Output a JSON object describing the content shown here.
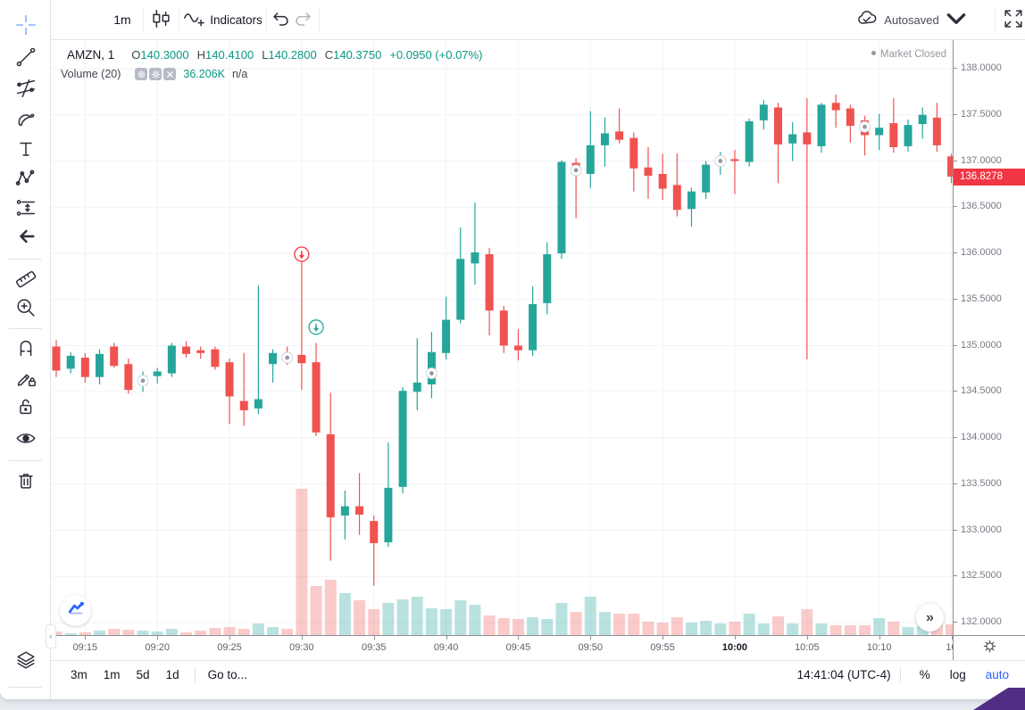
{
  "colors": {
    "up": "#26a69a",
    "down": "#ef5350",
    "vol_up": "rgba(38,166,154,0.32)",
    "vol_down": "rgba(239,83,80,0.30)",
    "grid": "#f0f3fa",
    "border": "#e0e3eb",
    "accent_blue": "#2962ff",
    "badge_red": "#f23645",
    "text_teal": "#089981",
    "text_gray": "#787b86",
    "marker_gray": "#9598a1",
    "purple_corner": "#512d86"
  },
  "sidebar": {
    "tools": [
      {
        "name": "crosshair",
        "active": true
      },
      {
        "name": "trend-line",
        "active": false
      },
      {
        "name": "gann-fib",
        "active": false
      },
      {
        "name": "brush",
        "active": false
      },
      {
        "name": "text",
        "active": false
      },
      {
        "name": "xabcd-pattern",
        "active": false
      },
      {
        "name": "forecast",
        "active": false
      },
      {
        "name": "arrow-mark",
        "active": false
      },
      {
        "name": "measure",
        "active": false
      },
      {
        "name": "zoom-in",
        "active": false
      },
      {
        "name": "magnet",
        "active": false
      },
      {
        "name": "drawing-mode",
        "active": false
      },
      {
        "name": "lock-all",
        "active": false
      },
      {
        "name": "hide-all",
        "active": false
      },
      {
        "name": "remove-all",
        "active": false
      },
      {
        "name": "object-tree",
        "active": false
      }
    ]
  },
  "toolbar": {
    "interval": "1m",
    "indicators_label": "Indicators",
    "autosaved_label": "Autosaved"
  },
  "legend": {
    "symbol": "AMZN, 1",
    "ohlc": [
      {
        "label": "O",
        "value": "140.3000"
      },
      {
        "label": "H",
        "value": "140.4100"
      },
      {
        "label": "L",
        "value": "140.2800"
      },
      {
        "label": "C",
        "value": "140.3750"
      }
    ],
    "change": "+0.0950 (+0.07%)",
    "volume_label": "Volume (20)",
    "volume_value": "36.206K",
    "volume_na": "n/a"
  },
  "status": {
    "market_closed": "Market Closed"
  },
  "price_axis": {
    "last_price": "136.8278",
    "ticks": [
      {
        "label": "138.0000",
        "price": 138.0
      },
      {
        "label": "137.5000",
        "price": 137.5
      },
      {
        "label": "137.0000",
        "price": 137.0
      },
      {
        "label": "136.5000",
        "price": 136.5
      },
      {
        "label": "136.0000",
        "price": 136.0
      },
      {
        "label": "135.5000",
        "price": 135.5
      },
      {
        "label": "135.0000",
        "price": 135.0
      },
      {
        "label": "134.5000",
        "price": 134.5
      },
      {
        "label": "134.0000",
        "price": 134.0
      },
      {
        "label": "133.5000",
        "price": 133.5
      },
      {
        "label": "133.0000",
        "price": 133.0
      },
      {
        "label": "132.5000",
        "price": 132.5
      },
      {
        "label": "132.0000",
        "price": 132.0
      }
    ]
  },
  "time_axis": {
    "labels": [
      {
        "text": "09:15",
        "index": 2,
        "bold": false
      },
      {
        "text": "09:20",
        "index": 7,
        "bold": false
      },
      {
        "text": "09:25",
        "index": 12,
        "bold": false
      },
      {
        "text": "09:30",
        "index": 17,
        "bold": false
      },
      {
        "text": "09:35",
        "index": 22,
        "bold": false
      },
      {
        "text": "09:40",
        "index": 27,
        "bold": false
      },
      {
        "text": "09:45",
        "index": 32,
        "bold": false
      },
      {
        "text": "09:50",
        "index": 37,
        "bold": false
      },
      {
        "text": "09:55",
        "index": 42,
        "bold": false
      },
      {
        "text": "10:00",
        "index": 47,
        "bold": true
      },
      {
        "text": "10:05",
        "index": 52,
        "bold": false
      },
      {
        "text": "10:10",
        "index": 57,
        "bold": false
      },
      {
        "text": "10",
        "index": 62,
        "bold": false
      }
    ]
  },
  "bottom_bar": {
    "ranges": [
      "3m",
      "1m",
      "5d",
      "1d"
    ],
    "goto_label": "Go to...",
    "clock": "14:41:04 (UTC-4)",
    "percent_label": "%",
    "log_label": "log",
    "auto_label": "auto"
  },
  "chart_data": {
    "type": "candlestick",
    "symbol": "AMZN",
    "interval": "1m",
    "price_range_visible": [
      132.0,
      138.0
    ],
    "volume_note": "volume in relative pixel units, max bar = 09:30",
    "candles": [
      [
        "09:13",
        134.99,
        135.06,
        134.66,
        134.73,
        4
      ],
      [
        "09:14",
        134.75,
        134.93,
        134.7,
        134.89,
        2
      ],
      [
        "09:15",
        134.87,
        134.92,
        134.6,
        134.66,
        3
      ],
      [
        "09:16",
        134.66,
        134.96,
        134.58,
        134.91,
        5
      ],
      [
        "09:17",
        134.99,
        135.03,
        134.76,
        134.78,
        7
      ],
      [
        "09:18",
        134.8,
        134.86,
        134.48,
        134.52,
        6
      ],
      [
        "09:19",
        134.57,
        134.72,
        134.5,
        134.67,
        5
      ],
      [
        "09:20",
        134.67,
        134.76,
        134.59,
        134.72,
        4
      ],
      [
        "09:21",
        134.7,
        135.03,
        134.66,
        135.0,
        7
      ],
      [
        "09:22",
        134.99,
        135.05,
        134.87,
        134.91,
        3
      ],
      [
        "09:23",
        134.95,
        134.99,
        134.86,
        134.92,
        5
      ],
      [
        "09:24",
        134.96,
        134.99,
        134.74,
        134.77,
        8
      ],
      [
        "09:25",
        134.82,
        134.86,
        134.15,
        134.45,
        9
      ],
      [
        "09:26",
        134.4,
        134.92,
        134.13,
        134.3,
        7
      ],
      [
        "09:27",
        134.32,
        135.65,
        134.26,
        134.42,
        13
      ],
      [
        "09:28",
        134.8,
        134.96,
        134.6,
        134.92,
        9
      ],
      [
        "09:29",
        134.92,
        134.99,
        134.79,
        134.84,
        7
      ],
      [
        "09:30",
        134.9,
        135.95,
        134.52,
        134.81,
        164
      ],
      [
        "09:31",
        134.82,
        135.03,
        134.02,
        134.06,
        55
      ],
      [
        "09:32",
        134.04,
        134.49,
        132.67,
        133.14,
        62
      ],
      [
        "09:33",
        133.16,
        133.43,
        132.9,
        133.26,
        47
      ],
      [
        "09:34",
        133.26,
        133.62,
        132.95,
        133.17,
        39
      ],
      [
        "09:35",
        133.1,
        133.16,
        132.4,
        132.86,
        29
      ],
      [
        "09:36",
        132.87,
        133.95,
        132.82,
        133.46,
        36
      ],
      [
        "09:37",
        133.47,
        134.55,
        133.4,
        134.51,
        40
      ],
      [
        "09:38",
        134.5,
        135.08,
        134.3,
        134.6,
        43
      ],
      [
        "09:39",
        134.58,
        135.15,
        134.43,
        134.93,
        30
      ],
      [
        "09:40",
        134.92,
        135.53,
        134.85,
        135.28,
        29
      ],
      [
        "09:41",
        135.28,
        136.28,
        135.24,
        135.94,
        39
      ],
      [
        "09:42",
        135.89,
        136.55,
        135.66,
        136.01,
        34
      ],
      [
        "09:43",
        135.99,
        136.06,
        135.11,
        135.38,
        22
      ],
      [
        "09:44",
        135.38,
        135.43,
        134.92,
        135.0,
        19
      ],
      [
        "09:45",
        135.0,
        135.18,
        134.84,
        134.95,
        18
      ],
      [
        "09:46",
        134.95,
        135.64,
        134.89,
        135.45,
        20
      ],
      [
        "09:47",
        135.46,
        136.12,
        135.34,
        135.99,
        18
      ],
      [
        "09:48",
        136.0,
        137.01,
        135.94,
        136.99,
        36
      ],
      [
        "09:49",
        136.98,
        137.03,
        136.38,
        136.85,
        26
      ],
      [
        "09:50",
        136.86,
        137.54,
        136.71,
        137.17,
        43
      ],
      [
        "09:51",
        137.17,
        137.47,
        136.94,
        137.3,
        26
      ],
      [
        "09:52",
        137.32,
        137.57,
        137.19,
        137.23,
        24
      ],
      [
        "09:53",
        137.25,
        137.31,
        136.67,
        136.92,
        24
      ],
      [
        "09:54",
        136.93,
        137.15,
        136.59,
        136.84,
        15
      ],
      [
        "09:55",
        136.86,
        137.08,
        136.58,
        136.7,
        14
      ],
      [
        "09:56",
        136.74,
        137.08,
        136.4,
        136.47,
        20
      ],
      [
        "09:57",
        136.48,
        136.71,
        136.29,
        136.67,
        14
      ],
      [
        "09:58",
        136.66,
        137.0,
        136.59,
        136.96,
        16
      ],
      [
        "09:59",
        136.96,
        137.1,
        136.85,
        137.02,
        13
      ],
      [
        "10:00",
        137.02,
        137.12,
        136.64,
        137.0,
        15
      ],
      [
        "10:01",
        136.99,
        137.46,
        136.94,
        137.43,
        24
      ],
      [
        "10:02",
        137.44,
        137.66,
        137.34,
        137.61,
        13
      ],
      [
        "10:03",
        137.58,
        137.63,
        136.76,
        137.18,
        21
      ],
      [
        "10:04",
        137.19,
        137.42,
        137.0,
        137.29,
        13
      ],
      [
        "10:05",
        137.31,
        137.68,
        134.85,
        137.18,
        29
      ],
      [
        "10:06",
        137.16,
        137.63,
        137.09,
        137.61,
        13
      ],
      [
        "10:07",
        137.63,
        137.72,
        137.36,
        137.55,
        11
      ],
      [
        "10:08",
        137.57,
        137.61,
        137.2,
        137.38,
        11
      ],
      [
        "10:09",
        137.44,
        137.49,
        137.06,
        137.28,
        11
      ],
      [
        "10:10",
        137.28,
        137.51,
        137.12,
        137.36,
        19
      ],
      [
        "10:11",
        137.41,
        137.68,
        137.09,
        137.15,
        15
      ],
      [
        "10:12",
        137.16,
        137.45,
        137.1,
        137.39,
        9
      ],
      [
        "10:13",
        137.4,
        137.58,
        137.24,
        137.5,
        10
      ],
      [
        "10:14",
        137.47,
        137.63,
        137.1,
        137.17,
        17
      ],
      [
        "10:15",
        137.05,
        137.08,
        136.76,
        136.83,
        12
      ]
    ],
    "markers": [
      {
        "time": "09:19",
        "price": 134.62,
        "type": "dot"
      },
      {
        "time": "09:29",
        "price": 134.87,
        "type": "dot"
      },
      {
        "time": "09:30",
        "price": 135.99,
        "type": "alert-down-red"
      },
      {
        "time": "09:31",
        "price": 135.2,
        "type": "alert-down-green"
      },
      {
        "time": "09:39",
        "price": 134.7,
        "type": "dot"
      },
      {
        "time": "09:49",
        "price": 136.9,
        "type": "dot"
      },
      {
        "time": "09:59",
        "price": 137.0,
        "type": "dot"
      },
      {
        "time": "10:09",
        "price": 137.37,
        "type": "dot"
      }
    ]
  }
}
